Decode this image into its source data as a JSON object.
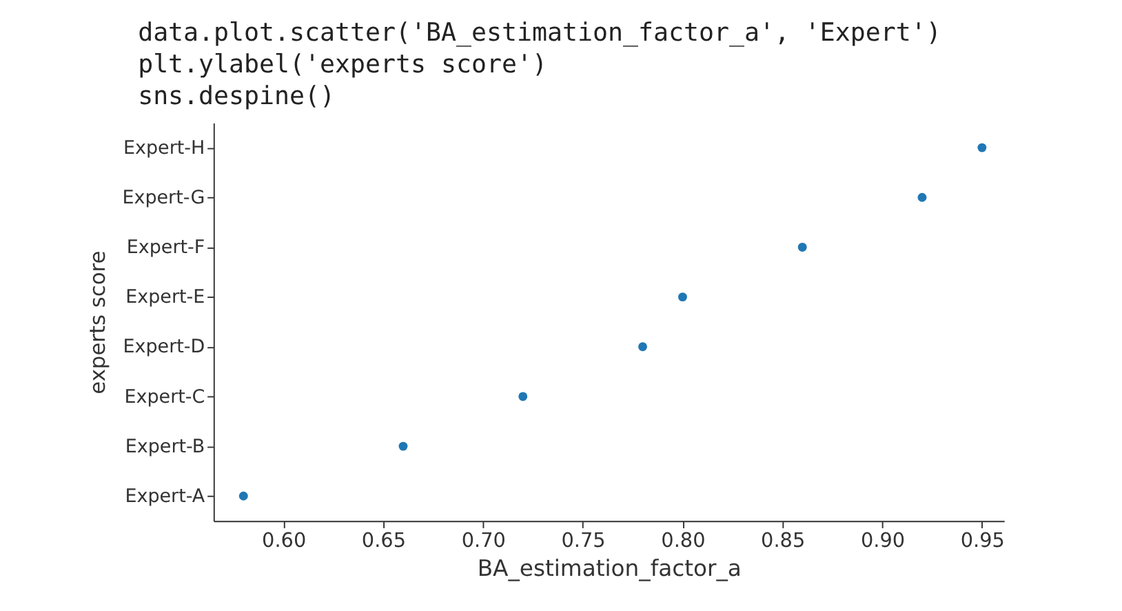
{
  "chart_data": {
    "type": "scatter",
    "orientation": "horizontal",
    "annotations": [
      "data.plot.scatter('BA_estimation_factor_a', 'Expert')",
      "plt.ylabel('experts score')",
      "sns.despine()"
    ],
    "xlabel": "BA_estimation_factor_a",
    "ylabel": "experts score",
    "categories": [
      "Expert-H",
      "Expert-G",
      "Expert-F",
      "Expert-E",
      "Expert-D",
      "Expert-C",
      "Expert-B",
      "Expert-A"
    ],
    "series": [
      {
        "color": "#1f77b4",
        "values": [
          0.95,
          0.92,
          0.86,
          0.8,
          0.78,
          0.72,
          0.66,
          0.58
        ]
      }
    ],
    "xlim": [
      0.565,
      0.961
    ],
    "xticks": [
      {
        "value": 0.6,
        "label": "0.60"
      },
      {
        "value": 0.65,
        "label": "0.65"
      },
      {
        "value": 0.7,
        "label": "0.70"
      },
      {
        "value": 0.75,
        "label": "0.75"
      },
      {
        "value": 0.8,
        "label": "0.80"
      },
      {
        "value": 0.85,
        "label": "0.85"
      },
      {
        "value": 0.9,
        "label": "0.90"
      },
      {
        "value": 0.95,
        "label": "0.95"
      }
    ],
    "grid": false,
    "legend": false
  }
}
